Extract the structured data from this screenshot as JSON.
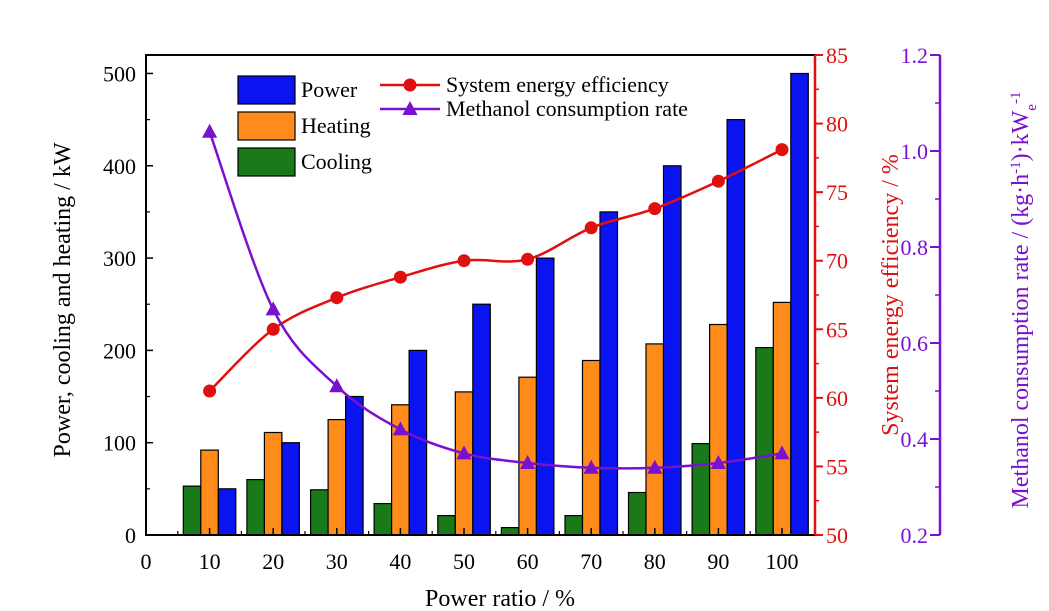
{
  "chart_data": {
    "type": "bar",
    "categories": [
      "10",
      "20",
      "30",
      "40",
      "50",
      "60",
      "70",
      "80",
      "90",
      "100"
    ],
    "xlabel": "Power ratio / %",
    "x_ticks": [
      "0",
      "10",
      "20",
      "30",
      "40",
      "50",
      "60",
      "70",
      "80",
      "90",
      "100"
    ],
    "ylim": [
      0,
      520
    ],
    "y_ticks": [
      "0",
      "100",
      "200",
      "300",
      "400",
      "500"
    ],
    "ylabel": "Power, cooling and heating / kW",
    "series": [
      {
        "name": "Cooling",
        "axis": "left",
        "type": "bar",
        "color": "#1a7a1a",
        "values": [
          53,
          60,
          49,
          34,
          21,
          8,
          21,
          46,
          99,
          203
        ]
      },
      {
        "name": "Heating",
        "axis": "left",
        "type": "bar",
        "color": "#ff8c1a",
        "values": [
          92,
          111,
          125,
          141,
          155,
          171,
          189,
          207,
          228,
          252
        ]
      },
      {
        "name": "Power",
        "axis": "left",
        "type": "bar",
        "color": "#0a14f0",
        "values": [
          50,
          100,
          150,
          200,
          250,
          300,
          350,
          400,
          450,
          500
        ]
      },
      {
        "name": "System energy efficiency",
        "axis": "right1",
        "type": "line",
        "color": "#e01010",
        "marker": "circle",
        "values": [
          60.5,
          65.0,
          67.3,
          68.8,
          70.0,
          70.1,
          72.4,
          73.8,
          75.8,
          78.1
        ]
      },
      {
        "name": "Methanol consumption rate",
        "axis": "right2",
        "type": "line",
        "color": "#7a10d0",
        "marker": "triangle",
        "values": [
          1.04,
          0.67,
          0.51,
          0.42,
          0.37,
          0.35,
          0.34,
          0.34,
          0.35,
          0.37
        ]
      }
    ],
    "right1_axis": {
      "label": "System energy efficiency / %",
      "ylim": [
        50,
        85
      ],
      "ticks": [
        "50",
        "55",
        "60",
        "65",
        "70",
        "75",
        "80",
        "85"
      ],
      "color": "#e01010"
    },
    "right2_axis": {
      "label_main": "Methanol consumption rate / (kg·h",
      "label_sup": "-1",
      "label_mid": ")·kW",
      "label_sub": "e",
      "label_sup2": "-1",
      "ylim": [
        0.2,
        1.2
      ],
      "ticks": [
        "0.2",
        "0.4",
        "0.6",
        "0.8",
        "1.0",
        "1.2"
      ],
      "color": "#7a10d0"
    },
    "legend_bars": [
      "Power",
      "Heating",
      "Cooling"
    ],
    "legend_lines": [
      "System energy efficiency",
      "Methanol consumption rate"
    ],
    "legend_position": "top-left",
    "grid": false
  }
}
